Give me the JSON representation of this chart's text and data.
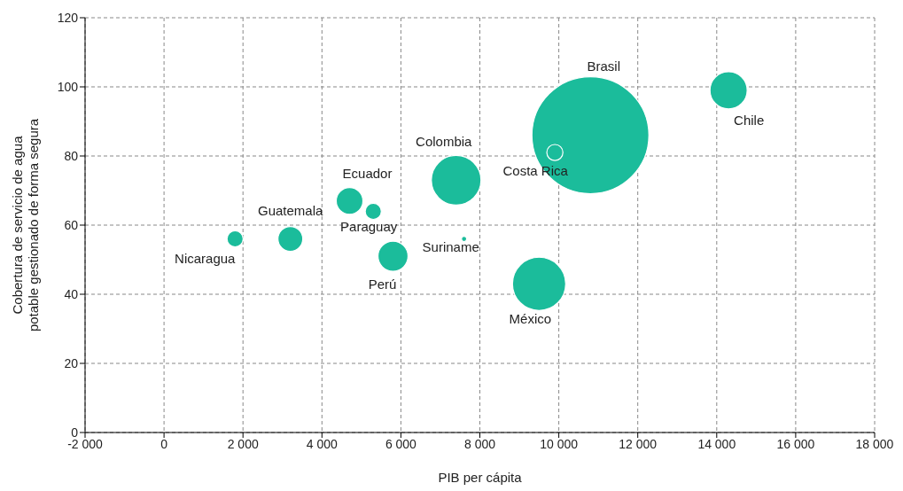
{
  "chart_data": {
    "type": "bubble",
    "xlabel": "PIB per cápita",
    "ylabel": "Cobertura de servicio de agua potable gestionado de forma segura",
    "xlim": [
      -2000,
      18000
    ],
    "ylim": [
      0,
      120
    ],
    "xticks": [
      {
        "value": -2000,
        "label": "-2 000"
      },
      0,
      {
        "value": 2000,
        "label": "2 000"
      },
      {
        "value": 4000,
        "label": "4 000"
      },
      {
        "value": 6000,
        "label": "6 000"
      },
      {
        "value": 8000,
        "label": "8 000"
      },
      {
        "value": 10000,
        "label": "10 000"
      },
      {
        "value": 12000,
        "label": "12 000"
      },
      {
        "value": 14000,
        "label": "14 000"
      },
      {
        "value": 16000,
        "label": "16 000"
      },
      {
        "value": 18000,
        "label": "18 000"
      }
    ],
    "yticks": [
      0,
      20,
      40,
      60,
      80,
      100,
      120
    ],
    "grid": true,
    "series": [
      {
        "name": "Nicaragua",
        "color": "#1bbc9b",
        "x": [
          1800
        ],
        "values": [
          56
        ],
        "sizes": [
          0.019
        ]
      },
      {
        "name": "Guatemala",
        "color": "#1bbc9b",
        "x": [
          3200
        ],
        "values": [
          56
        ],
        "sizes": [
          0.045
        ]
      },
      {
        "name": "Ecuador",
        "color": "#1bbc9b",
        "x": [
          4700
        ],
        "values": [
          67
        ],
        "sizes": [
          0.052
        ]
      },
      {
        "name": "Paraguay",
        "color": "#1bbc9b",
        "x": [
          5300
        ],
        "values": [
          64
        ],
        "sizes": [
          0.019
        ]
      },
      {
        "name": "Perú",
        "color": "#1bbc9b",
        "x": [
          5800
        ],
        "values": [
          51
        ],
        "sizes": [
          0.066
        ]
      },
      {
        "name": "Suriname",
        "color": "#1bbc9b",
        "x": [
          7600
        ],
        "values": [
          56
        ],
        "sizes": [
          0.002
        ]
      },
      {
        "name": "Colombia",
        "color": "#1bbc9b",
        "x": [
          7400
        ],
        "values": [
          73
        ],
        "sizes": [
          0.18
        ]
      },
      {
        "name": "México",
        "color": "#1bbc9b",
        "x": [
          9500
        ],
        "values": [
          43
        ],
        "sizes": [
          0.207
        ]
      },
      {
        "name": "Brasil",
        "color": "#1bbc9b",
        "x": [
          10800
        ],
        "values": [
          86
        ],
        "sizes": [
          1
        ]
      },
      {
        "name": "Costa Rica",
        "color": "#1bbc9b",
        "x": [
          9900
        ],
        "values": [
          81
        ],
        "sizes": [
          0.019
        ]
      },
      {
        "name": "Chile",
        "color": "#1bbc9b",
        "x": [
          14300
        ],
        "values": [
          99
        ],
        "sizes": [
          0.101
        ]
      }
    ]
  }
}
